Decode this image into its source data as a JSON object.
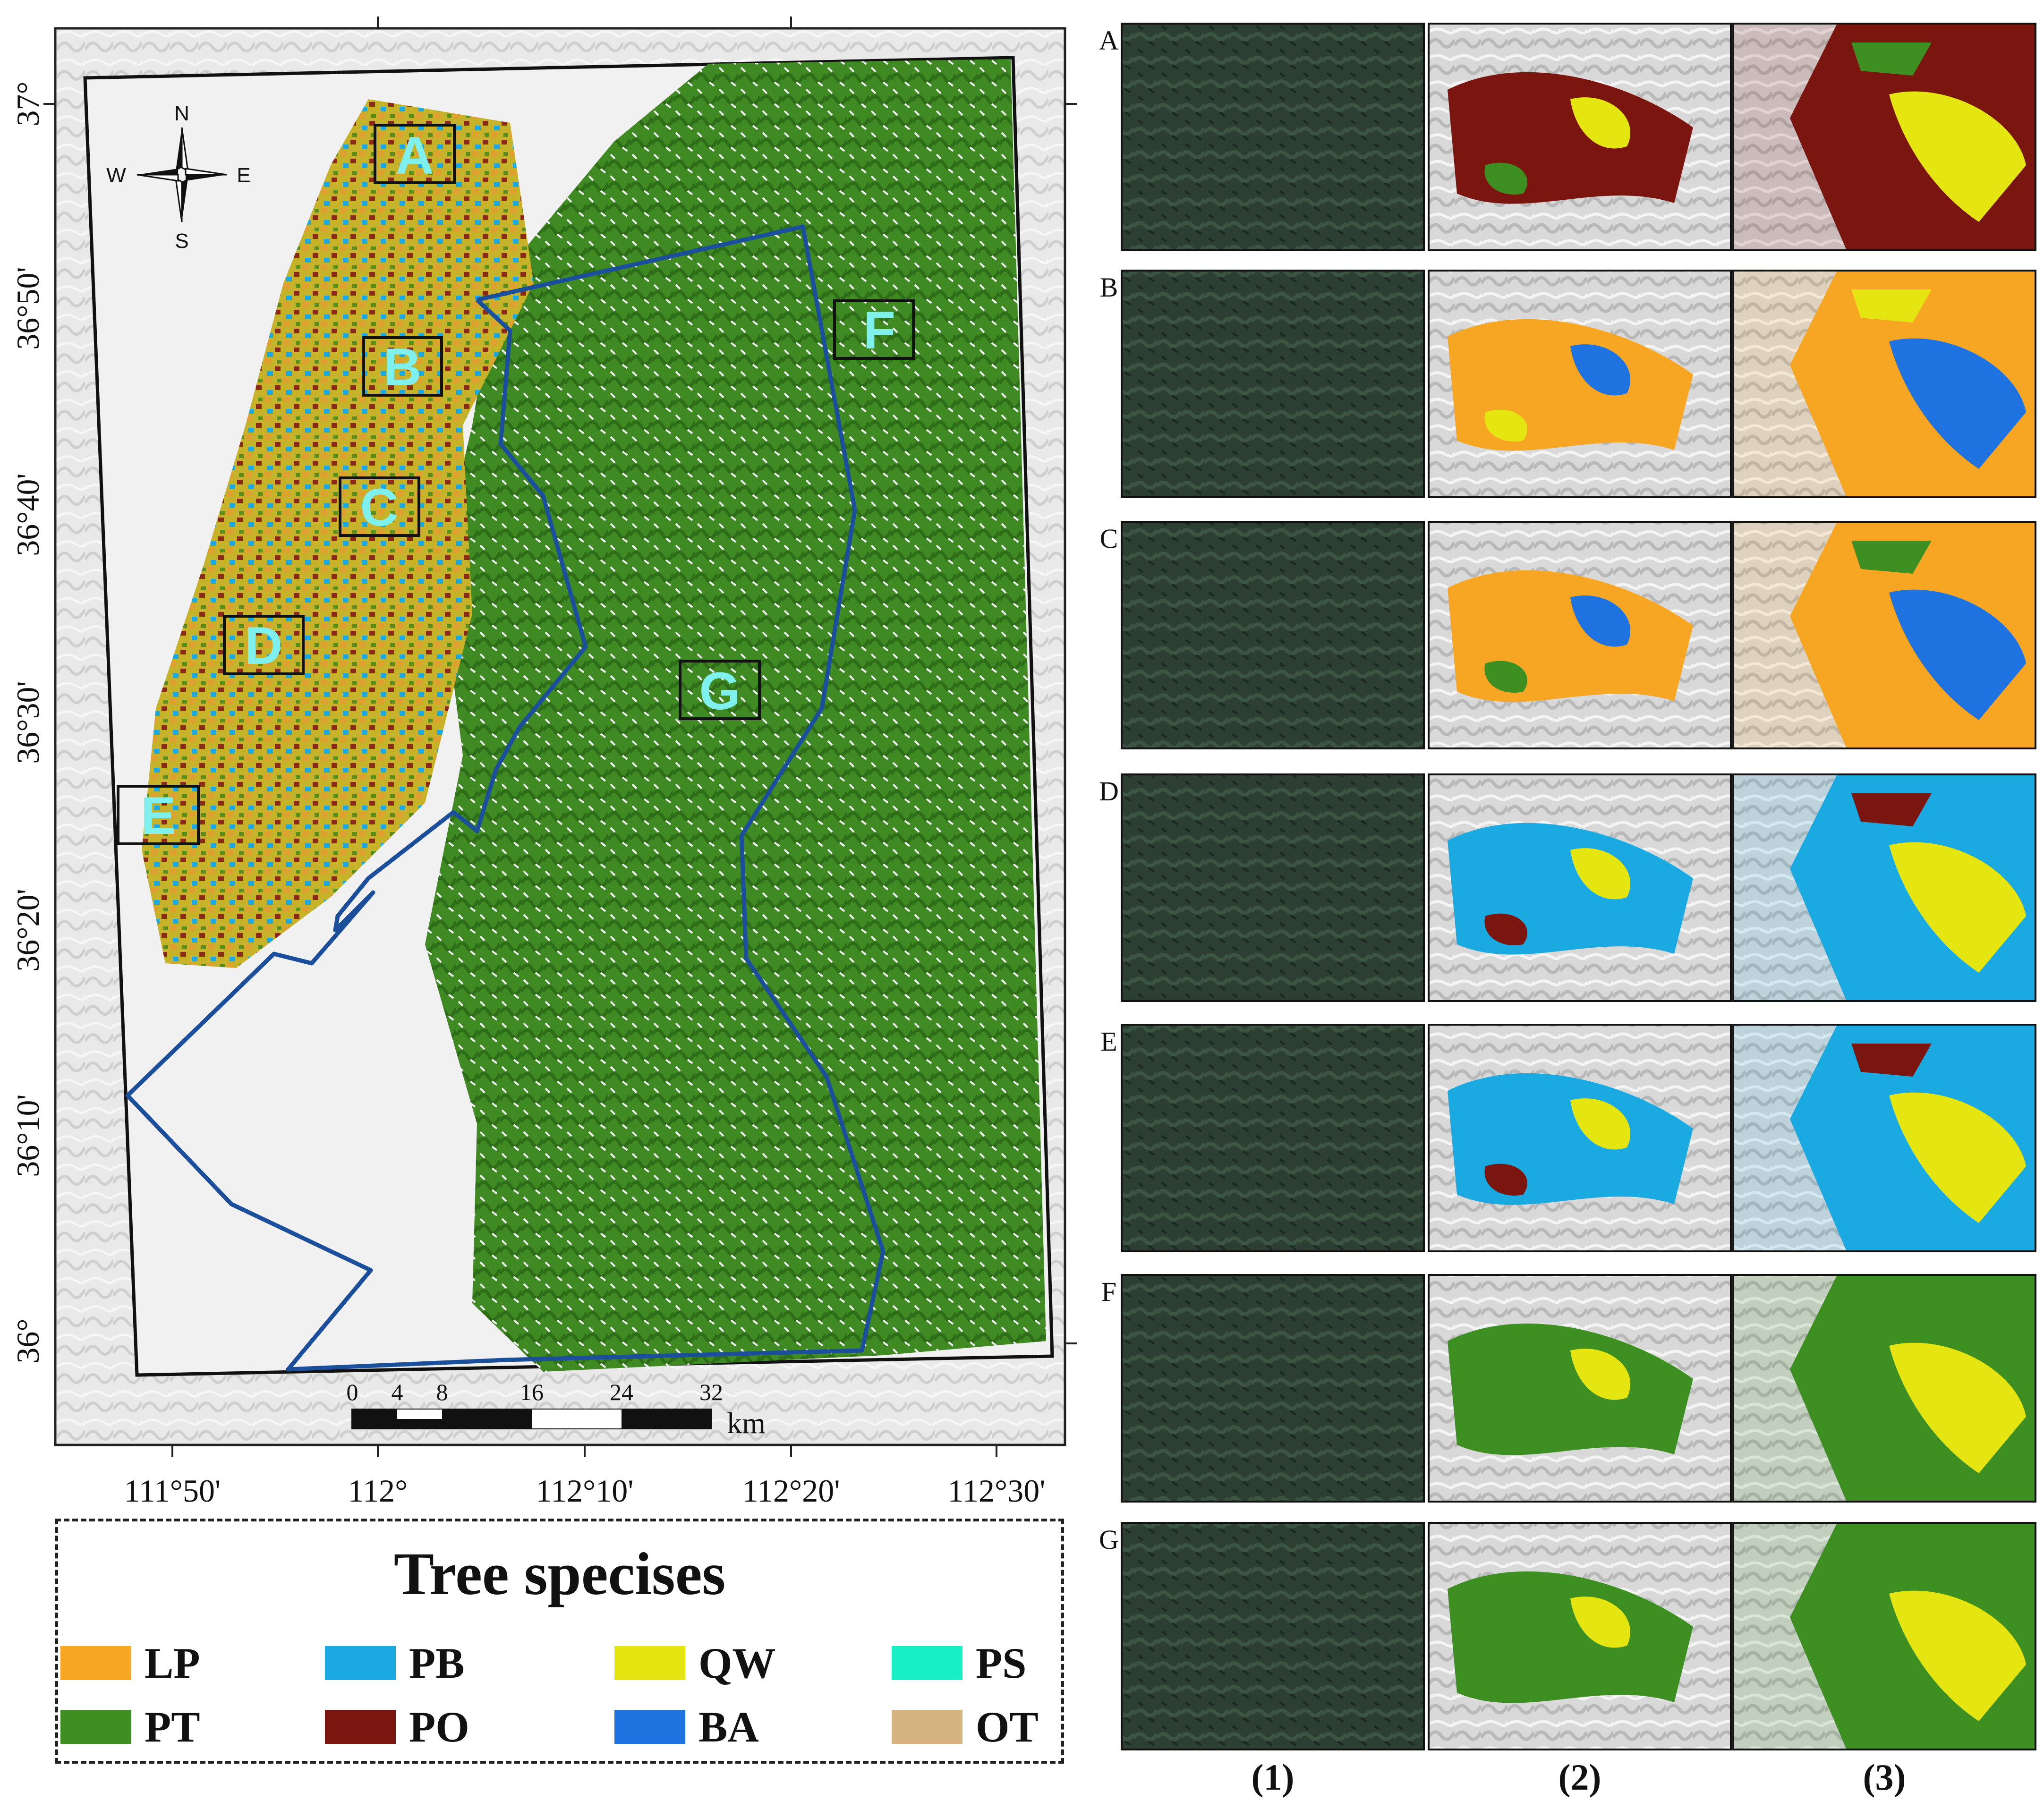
{
  "map": {
    "longitude_labels": [
      "111°50'",
      "112°",
      "112°10'",
      "112°20'",
      "112°30'"
    ],
    "latitude_labels": [
      "37°",
      "36°50'",
      "36°40'",
      "36°30'",
      "36°20'",
      "36°10'",
      "36°"
    ],
    "region_labels": [
      "A",
      "B",
      "C",
      "D",
      "E",
      "F",
      "G"
    ],
    "compass": {
      "n": "N",
      "s": "S",
      "e": "E",
      "w": "W"
    },
    "scale_bar": {
      "ticks": [
        "0",
        "4",
        "8",
        "16",
        "24",
        "32"
      ],
      "unit": "km"
    }
  },
  "legend": {
    "title": "Tree specises",
    "items": [
      {
        "code": "LP",
        "color": "#f7a623"
      },
      {
        "code": "PB",
        "color": "#1ba9e2"
      },
      {
        "code": "QW",
        "color": "#e5e512"
      },
      {
        "code": "PS",
        "color": "#18efc4"
      },
      {
        "code": "PT",
        "color": "#3d8f22"
      },
      {
        "code": "PO",
        "color": "#7a1510"
      },
      {
        "code": "BA",
        "color": "#1f73e0"
      },
      {
        "code": "OT",
        "color": "#d6b47f"
      }
    ]
  },
  "panels": {
    "rows": [
      "A",
      "B",
      "C",
      "D",
      "E",
      "F",
      "G"
    ],
    "columns": [
      "(1)",
      "(2)",
      "(3)"
    ]
  },
  "colors": {
    "boundary": "#1b4f9c",
    "hillshade": "#dcdcdc",
    "satellite": "#2c3f32"
  }
}
